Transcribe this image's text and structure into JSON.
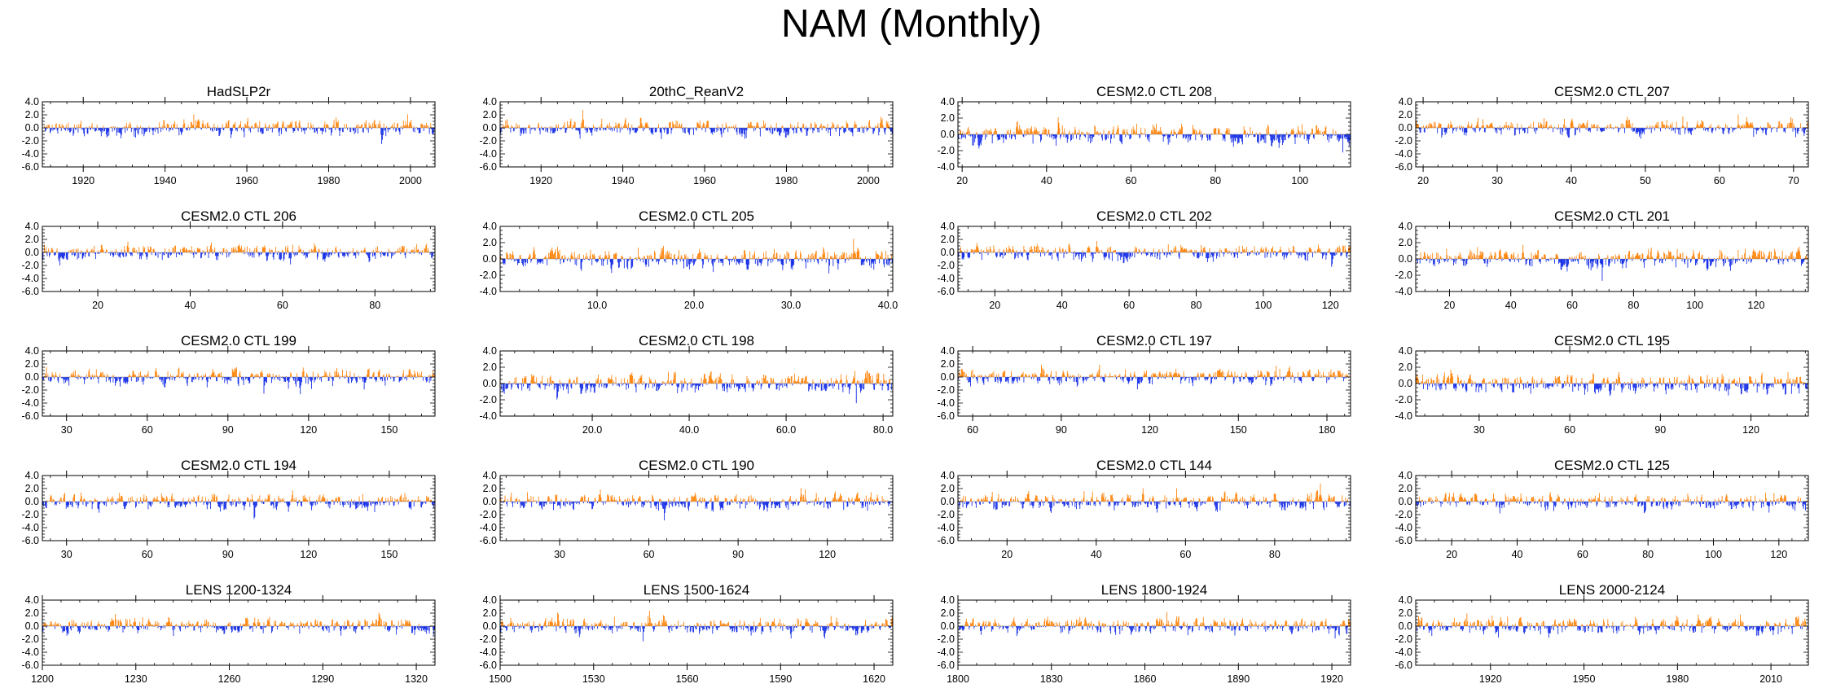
{
  "figure": {
    "title": "NAM (Monthly)",
    "colors": {
      "positive": "#ff7f00",
      "negative": "#0a24e6",
      "axis": "#000000"
    }
  },
  "chart_data": [
    {
      "type": "bar",
      "title": "HadSLP2r",
      "xlim": [
        1910,
        2006
      ],
      "xticks": [
        1920,
        1940,
        1960,
        1980,
        2000
      ],
      "xtick_labels": [
        "1920",
        "1940",
        "1960",
        "1980",
        "2000"
      ],
      "ylim": [
        -6,
        4
      ],
      "yticks": [
        -6,
        -4,
        -2,
        0,
        2,
        4
      ],
      "ytick_labels": [
        "-6.0",
        "-4.0",
        "-2.0",
        "0.0",
        "2.0",
        "4.0"
      ],
      "seed": 11
    },
    {
      "type": "bar",
      "title": "20thC_ReanV2",
      "xlim": [
        1910,
        2006
      ],
      "xticks": [
        1920,
        1940,
        1960,
        1980,
        2000
      ],
      "xtick_labels": [
        "1920",
        "1940",
        "1960",
        "1980",
        "2000"
      ],
      "ylim": [
        -6,
        4
      ],
      "yticks": [
        -6,
        -4,
        -2,
        0,
        2,
        4
      ],
      "ytick_labels": [
        "-6.0",
        "-4.0",
        "-2.0",
        "0.0",
        "2.0",
        "4.0"
      ],
      "seed": 23
    },
    {
      "type": "bar",
      "title": "CESM2.0 CTL 208",
      "xlim": [
        19,
        112
      ],
      "xticks": [
        20,
        40,
        60,
        80,
        100
      ],
      "xtick_labels": [
        "20",
        "40",
        "60",
        "80",
        "100"
      ],
      "ylim": [
        -4,
        4
      ],
      "yticks": [
        -4,
        -2,
        0,
        2,
        4
      ],
      "ytick_labels": [
        "-4.0",
        "-2.0",
        "0.0",
        "2.0",
        "4.0"
      ],
      "seed": 37
    },
    {
      "type": "bar",
      "title": "CESM2.0 CTL 207",
      "xlim": [
        19,
        72
      ],
      "xticks": [
        20,
        30,
        40,
        50,
        60,
        70
      ],
      "xtick_labels": [
        "20",
        "30",
        "40",
        "50",
        "60",
        "70"
      ],
      "ylim": [
        -6,
        4
      ],
      "yticks": [
        -6,
        -4,
        -2,
        0,
        2,
        4
      ],
      "ytick_labels": [
        "-6.0",
        "-4.0",
        "-2.0",
        "0.0",
        "2.0",
        "4.0"
      ],
      "seed": 41
    },
    {
      "type": "bar",
      "title": "CESM2.0 CTL 206",
      "xlim": [
        8,
        93
      ],
      "xticks": [
        20,
        40,
        60,
        80
      ],
      "xtick_labels": [
        "20",
        "40",
        "60",
        "80"
      ],
      "ylim": [
        -6,
        4
      ],
      "yticks": [
        -6,
        -4,
        -2,
        0,
        2,
        4
      ],
      "ytick_labels": [
        "-6.0",
        "-4.0",
        "-2.0",
        "0.0",
        "2.0",
        "4.0"
      ],
      "seed": 53
    },
    {
      "type": "bar",
      "title": "CESM2.0 CTL 205",
      "xlim": [
        0,
        40.5
      ],
      "xticks": [
        10,
        20,
        30,
        40
      ],
      "xtick_labels": [
        "10.0",
        "20.0",
        "30.0",
        "40.0"
      ],
      "ylim": [
        -4,
        4
      ],
      "yticks": [
        -4,
        -2,
        0,
        2,
        4
      ],
      "ytick_labels": [
        "-4.0",
        "-2.0",
        "0.0",
        "2.0",
        "4.0"
      ],
      "seed": 67
    },
    {
      "type": "bar",
      "title": "CESM2.0 CTL 202",
      "xlim": [
        9,
        126
      ],
      "xticks": [
        20,
        40,
        60,
        80,
        100,
        120
      ],
      "xtick_labels": [
        "20",
        "40",
        "60",
        "80",
        "100",
        "120"
      ],
      "ylim": [
        -6,
        4
      ],
      "yticks": [
        -6,
        -4,
        -2,
        0,
        2,
        4
      ],
      "ytick_labels": [
        "-6.0",
        "-4.0",
        "-2.0",
        "0.0",
        "2.0",
        "4.0"
      ],
      "seed": 71
    },
    {
      "type": "bar",
      "title": "CESM2.0 CTL 201",
      "xlim": [
        9,
        137
      ],
      "xticks": [
        20,
        40,
        60,
        80,
        100,
        120
      ],
      "xtick_labels": [
        "20",
        "40",
        "60",
        "80",
        "100",
        "120"
      ],
      "ylim": [
        -4,
        4
      ],
      "yticks": [
        -4,
        -2,
        0,
        2,
        4
      ],
      "ytick_labels": [
        "-4.0",
        "-2.0",
        "0.0",
        "2.0",
        "4.0"
      ],
      "seed": 83
    },
    {
      "type": "bar",
      "title": "CESM2.0 CTL 199",
      "xlim": [
        21,
        167
      ],
      "xticks": [
        30,
        60,
        90,
        120,
        150
      ],
      "xtick_labels": [
        "30",
        "60",
        "90",
        "120",
        "150"
      ],
      "ylim": [
        -6,
        4
      ],
      "yticks": [
        -6,
        -4,
        -2,
        0,
        2,
        4
      ],
      "ytick_labels": [
        "-6.0",
        "-4.0",
        "-2.0",
        "0.0",
        "2.0",
        "4.0"
      ],
      "seed": 97
    },
    {
      "type": "bar",
      "title": "CESM2.0 CTL 198",
      "xlim": [
        1,
        82
      ],
      "xticks": [
        20,
        40,
        60,
        80
      ],
      "xtick_labels": [
        "20.0",
        "40.0",
        "60.0",
        "80.0"
      ],
      "ylim": [
        -4,
        4
      ],
      "yticks": [
        -4,
        -2,
        0,
        2,
        4
      ],
      "ytick_labels": [
        "-4.0",
        "-2.0",
        "0.0",
        "2.0",
        "4.0"
      ],
      "seed": 101
    },
    {
      "type": "bar",
      "title": "CESM2.0 CTL 197",
      "xlim": [
        55,
        188
      ],
      "xticks": [
        60,
        90,
        120,
        150,
        180
      ],
      "xtick_labels": [
        "60",
        "90",
        "120",
        "150",
        "180"
      ],
      "ylim": [
        -6,
        4
      ],
      "yticks": [
        -6,
        -4,
        -2,
        0,
        2,
        4
      ],
      "ytick_labels": [
        "-6.0",
        "-4.0",
        "-2.0",
        "0.0",
        "2.0",
        "4.0"
      ],
      "seed": 113
    },
    {
      "type": "bar",
      "title": "CESM2.0 CTL 195",
      "xlim": [
        9,
        139
      ],
      "xticks": [
        30,
        60,
        90,
        120
      ],
      "xtick_labels": [
        "30",
        "60",
        "90",
        "120"
      ],
      "ylim": [
        -4,
        4
      ],
      "yticks": [
        -4,
        -2,
        0,
        2,
        4
      ],
      "ytick_labels": [
        "-4.0",
        "-2.0",
        "0.0",
        "2.0",
        "4.0"
      ],
      "seed": 127
    },
    {
      "type": "bar",
      "title": "CESM2.0 CTL 194",
      "xlim": [
        21,
        167
      ],
      "xticks": [
        30,
        60,
        90,
        120,
        150
      ],
      "xtick_labels": [
        "30",
        "60",
        "90",
        "120",
        "150"
      ],
      "ylim": [
        -6,
        4
      ],
      "yticks": [
        -6,
        -4,
        -2,
        0,
        2,
        4
      ],
      "ytick_labels": [
        "-6.0",
        "-4.0",
        "-2.0",
        "0.0",
        "2.0",
        "4.0"
      ],
      "seed": 131
    },
    {
      "type": "bar",
      "title": "CESM2.0 CTL 190",
      "xlim": [
        10,
        142
      ],
      "xticks": [
        30,
        60,
        90,
        120
      ],
      "xtick_labels": [
        "30",
        "60",
        "90",
        "120"
      ],
      "ylim": [
        -6,
        4
      ],
      "yticks": [
        -6,
        -4,
        -2,
        0,
        2,
        4
      ],
      "ytick_labels": [
        "-6.0",
        "-4.0",
        "-2.0",
        "0.0",
        "2.0",
        "4.0"
      ],
      "seed": 149
    },
    {
      "type": "bar",
      "title": "CESM2.0 CTL 144",
      "xlim": [
        9,
        97
      ],
      "xticks": [
        20,
        40,
        60,
        80
      ],
      "xtick_labels": [
        "20",
        "40",
        "60",
        "80"
      ],
      "ylim": [
        -6,
        4
      ],
      "yticks": [
        -6,
        -4,
        -2,
        0,
        2,
        4
      ],
      "ytick_labels": [
        "-6.0",
        "-4.0",
        "-2.0",
        "0.0",
        "2.0",
        "4.0"
      ],
      "seed": 157
    },
    {
      "type": "bar",
      "title": "CESM2.0 CTL 125",
      "xlim": [
        9,
        129
      ],
      "xticks": [
        20,
        40,
        60,
        80,
        100,
        120
      ],
      "xtick_labels": [
        "20",
        "40",
        "60",
        "80",
        "100",
        "120"
      ],
      "ylim": [
        -6,
        4
      ],
      "yticks": [
        -6,
        -4,
        -2,
        0,
        2,
        4
      ],
      "ytick_labels": [
        "-6.0",
        "-4.0",
        "-2.0",
        "0.0",
        "2.0",
        "4.0"
      ],
      "seed": 163
    },
    {
      "type": "bar",
      "title": "LENS 1200-1324",
      "xlim": [
        1200,
        1326
      ],
      "xticks": [
        1200,
        1230,
        1260,
        1290,
        1320
      ],
      "xtick_labels": [
        "1200",
        "1230",
        "1260",
        "1290",
        "1320"
      ],
      "ylim": [
        -6,
        4
      ],
      "yticks": [
        -6,
        -4,
        -2,
        0,
        2,
        4
      ],
      "ytick_labels": [
        "-6.0",
        "-4.0",
        "-2.0",
        "0.0",
        "2.0",
        "4.0"
      ],
      "seed": 173
    },
    {
      "type": "bar",
      "title": "LENS 1500-1624",
      "xlim": [
        1500,
        1626
      ],
      "xticks": [
        1500,
        1530,
        1560,
        1590,
        1620
      ],
      "xtick_labels": [
        "1500",
        "1530",
        "1560",
        "1590",
        "1620"
      ],
      "ylim": [
        -6,
        4
      ],
      "yticks": [
        -6,
        -4,
        -2,
        0,
        2,
        4
      ],
      "ytick_labels": [
        "-6.0",
        "-4.0",
        "-2.0",
        "0.0",
        "2.0",
        "4.0"
      ],
      "seed": 181
    },
    {
      "type": "bar",
      "title": "LENS 1800-1924",
      "xlim": [
        1800,
        1926
      ],
      "xticks": [
        1800,
        1830,
        1860,
        1890,
        1920
      ],
      "xtick_labels": [
        "1800",
        "1830",
        "1860",
        "1890",
        "1920"
      ],
      "ylim": [
        -6,
        4
      ],
      "yticks": [
        -6,
        -4,
        -2,
        0,
        2,
        4
      ],
      "ytick_labels": [
        "-6.0",
        "-4.0",
        "-2.0",
        "0.0",
        "2.0",
        "4.0"
      ],
      "seed": 191
    },
    {
      "type": "bar",
      "title": "LENS 2000-2124",
      "xlim": [
        1896,
        2022
      ],
      "xticks": [
        1920,
        1950,
        1980,
        2010
      ],
      "xtick_labels": [
        "1920",
        "1950",
        "1980",
        "2010"
      ],
      "ylim": [
        -6,
        4
      ],
      "yticks": [
        -6,
        -4,
        -2,
        0,
        2,
        4
      ],
      "ytick_labels": [
        "-6.0",
        "-4.0",
        "-2.0",
        "0.0",
        "2.0",
        "4.0"
      ],
      "seed": 197
    }
  ]
}
